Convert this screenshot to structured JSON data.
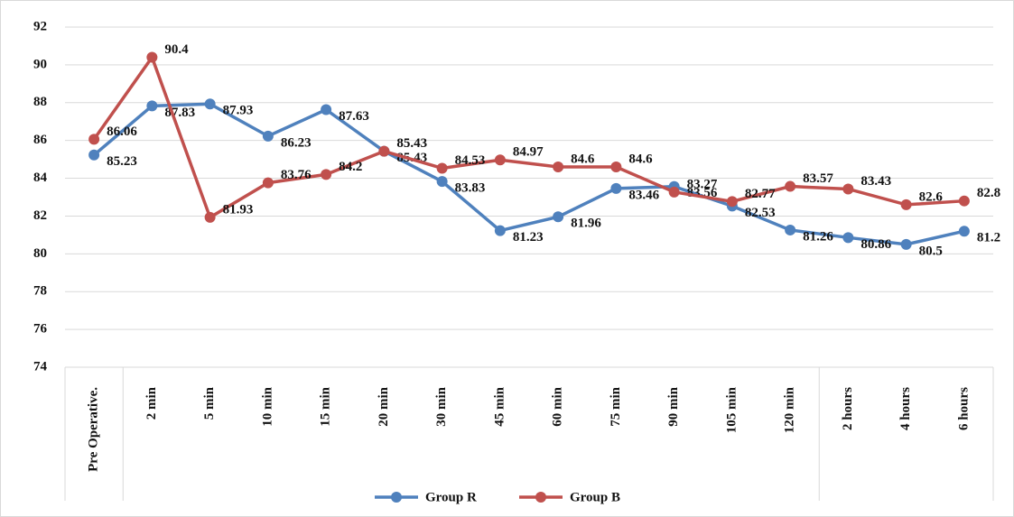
{
  "chart_data": {
    "type": "line",
    "categories": [
      "Pre Operative.",
      "2 min",
      "5 min",
      "10 min",
      "15 min",
      "20 min",
      "30 min",
      "45 min",
      "60 min",
      "75 min",
      "90 min",
      "105 min",
      "120 min",
      "2 hours",
      "4 hours",
      "6 hours"
    ],
    "series": [
      {
        "name": "Group R",
        "color": "#4f81bd",
        "values": [
          85.23,
          87.83,
          87.93,
          86.23,
          87.63,
          85.43,
          83.83,
          81.23,
          81.96,
          83.46,
          83.56,
          82.53,
          81.26,
          80.86,
          80.5,
          81.2
        ]
      },
      {
        "name": "Group B",
        "color": "#c0504d",
        "values": [
          86.06,
          90.4,
          81.93,
          83.76,
          84.2,
          85.43,
          84.53,
          84.97,
          84.6,
          84.6,
          83.27,
          82.77,
          83.57,
          83.43,
          82.6,
          82.8
        ]
      }
    ],
    "ylim": [
      74,
      92
    ],
    "yticks": [
      74,
      76,
      78,
      80,
      82,
      84,
      86,
      88,
      90,
      92
    ],
    "grid": true,
    "legend": "bottom"
  }
}
